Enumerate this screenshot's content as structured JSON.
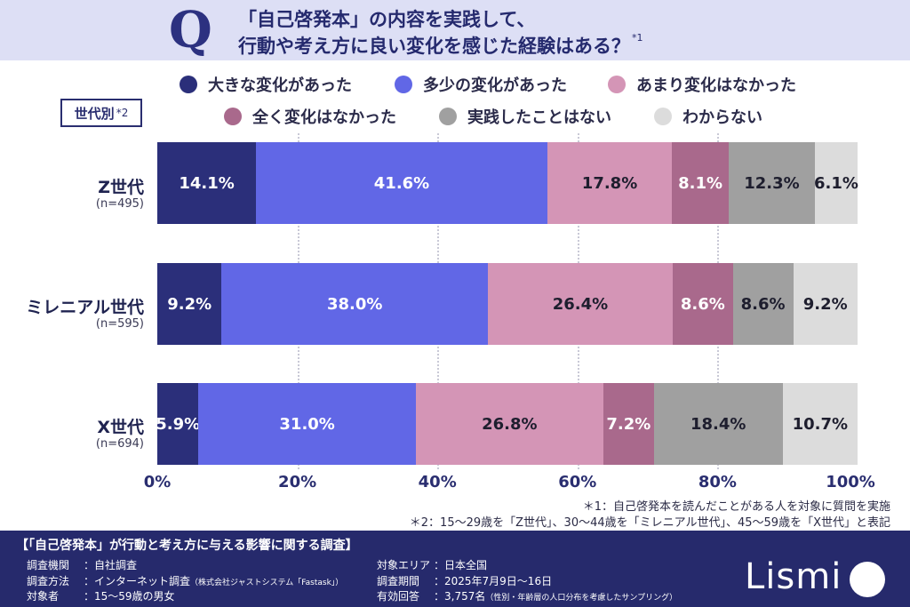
{
  "question": {
    "letter": "Q",
    "line1": "「自己啓発本」の内容を実践して、",
    "line2": "行動や考え方に良い変化を感じた経験はある？",
    "note": "*1"
  },
  "legend": [
    {
      "label": "大きな変化があった",
      "color": "#2b2f7a"
    },
    {
      "label": "多少の変化があった",
      "color": "#6167e6"
    },
    {
      "label": "あまり変化はなかった",
      "color": "#d495b6"
    },
    {
      "label": "全く変化はなかった",
      "color": "#a9698c"
    },
    {
      "label": "実践したことはない",
      "color": "#a0a0a0"
    },
    {
      "label": "わからない",
      "color": "#dcdcdc"
    }
  ],
  "generation_box": {
    "label": "世代別",
    "note": "*2"
  },
  "chart_data": {
    "type": "bar",
    "orientation": "horizontal",
    "stacked": true,
    "categories": [
      "Z世代",
      "ミレニアル世代",
      "X世代"
    ],
    "sample_sizes": [
      "(n=495)",
      "(n=595)",
      "(n=694)"
    ],
    "series": [
      {
        "name": "大きな変化があった",
        "values": [
          14.1,
          9.2,
          5.9
        ],
        "labels": [
          "14.1%",
          "9.2%",
          "5.9%"
        ]
      },
      {
        "name": "多少の変化があった",
        "values": [
          41.6,
          38.0,
          31.0
        ],
        "labels": [
          "41.6%",
          "38.0%",
          "31.0%"
        ]
      },
      {
        "name": "あまり変化はなかった",
        "values": [
          17.8,
          26.4,
          26.8
        ],
        "labels": [
          "17.8%",
          "26.4%",
          "26.8%"
        ]
      },
      {
        "name": "全く変化はなかった",
        "values": [
          8.1,
          8.6,
          7.2
        ],
        "labels": [
          "8.1%",
          "8.6%",
          "7.2%"
        ]
      },
      {
        "name": "実践したことはない",
        "values": [
          12.3,
          8.6,
          18.4
        ],
        "labels": [
          "12.3%",
          "8.6%",
          "18.4%"
        ]
      },
      {
        "name": "わからない",
        "values": [
          6.1,
          9.2,
          10.7
        ],
        "labels": [
          "6.1%",
          "9.2%",
          "10.7%"
        ]
      }
    ],
    "label_colors": [
      "#ffffff",
      "#ffffff",
      "#1e1e2e",
      "#ffffff",
      "#1e1e2e",
      "#1e1e2e"
    ],
    "xlim": [
      0,
      100
    ],
    "ticks": [
      "0%",
      "20%",
      "40%",
      "60%",
      "80%",
      "100%"
    ],
    "grid": true
  },
  "footnotes": {
    "note1": "＊1：自己啓発本を読んだことがある人を対象に質問を実施",
    "note2": "＊2：15～29歳を「Z世代」、30～44歳を「ミレニアル世代」、45～59歳を「X世代」と表記"
  },
  "footer": {
    "title": "【「自己啓発本」が行動と考え方に与える影響に関する調査】",
    "left": [
      {
        "key": "調査機関",
        "value": "：自社調査",
        "small": ""
      },
      {
        "key": "調査方法",
        "value": "：インターネット調査",
        "small": "（株式会社ジャストシステム「Fastask」）"
      },
      {
        "key": "対象者",
        "value": "：15～59歳の男女",
        "small": ""
      }
    ],
    "right": [
      {
        "key": "対象エリア",
        "value": "：日本全国",
        "small": ""
      },
      {
        "key": "調査期間",
        "value": "：2025年7月9日～16日",
        "small": ""
      },
      {
        "key": "有効回答",
        "value": "：3,757名",
        "small": "（性別・年齢層の人口分布を考慮したサンプリング）"
      }
    ]
  },
  "logo": "Lismi"
}
